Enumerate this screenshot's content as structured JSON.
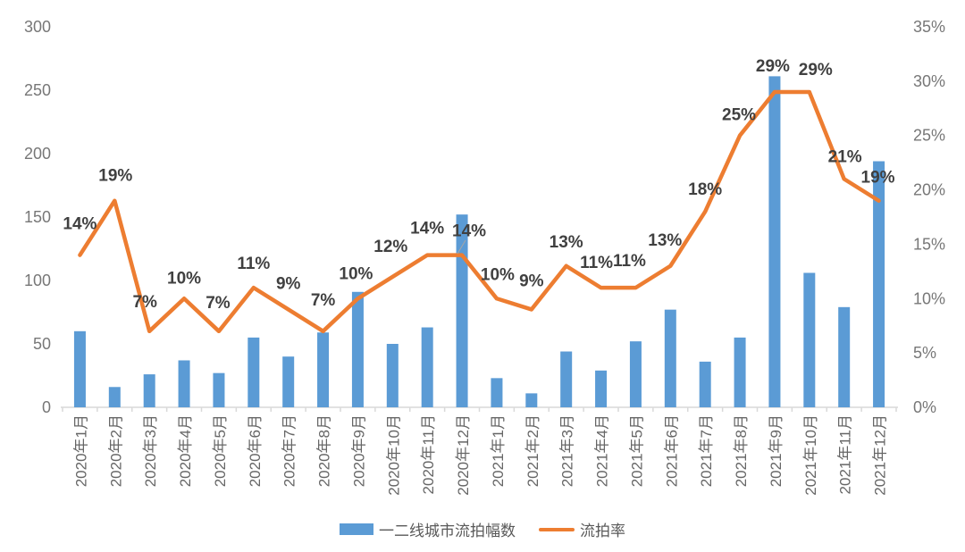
{
  "chart_data": {
    "type": "combo-bar-line",
    "title": "",
    "categories": [
      "2020年1月",
      "2020年2月",
      "2020年3月",
      "2020年4月",
      "2020年5月",
      "2020年6月",
      "2020年7月",
      "2020年8月",
      "2020年9月",
      "2020年10月",
      "2020年11月",
      "2020年12月",
      "2021年1月",
      "2021年2月",
      "2021年3月",
      "2021年4月",
      "2021年5月",
      "2021年6月",
      "2021年7月",
      "2021年8月",
      "2021年9月",
      "2021年10月",
      "2021年11月",
      "2021年12月"
    ],
    "series": [
      {
        "name": "一二线城市流拍幅数",
        "type": "bar",
        "axis": "left",
        "color": "#5B9BD5",
        "values": [
          60,
          16,
          26,
          37,
          27,
          55,
          40,
          59,
          91,
          50,
          63,
          152,
          23,
          11,
          44,
          29,
          52,
          77,
          36,
          55,
          261,
          106,
          79,
          194
        ]
      },
      {
        "name": "流拍率",
        "type": "line",
        "axis": "right",
        "color": "#ED7D31",
        "values": [
          14,
          19,
          7,
          10,
          7,
          11,
          9,
          7,
          10,
          12,
          14,
          14,
          10,
          9,
          13,
          11,
          11,
          13,
          18,
          25,
          29,
          29,
          21,
          19
        ],
        "labels": [
          "14%",
          "19%",
          "7%",
          "10%",
          "7%",
          "11%",
          "9%",
          "7%",
          "10%",
          "12%",
          "14%",
          "14%",
          "10%",
          "9%",
          "13%",
          "11%",
          "11%",
          "13%",
          "18%",
          "25%",
          "29%",
          "29%",
          "21%",
          "19%"
        ]
      }
    ],
    "left_axis": {
      "min": 0,
      "max": 300,
      "step": 50,
      "tick_labels": [
        "0",
        "50",
        "100",
        "150",
        "200",
        "250",
        "300"
      ]
    },
    "right_axis": {
      "min": 0,
      "max": 35,
      "step": 5,
      "tick_labels": [
        "0%",
        "5%",
        "10%",
        "15%",
        "20%",
        "25%",
        "30%",
        "35%"
      ]
    },
    "legend": {
      "position": "bottom",
      "items": [
        "一二线城市流拍幅数",
        "流拍率"
      ]
    },
    "grid": false,
    "label_color": "#404040",
    "axis_text_color": "#777777",
    "axis_line_color": "#D9D9D9",
    "leader_line_color": "#A6A6A6"
  }
}
